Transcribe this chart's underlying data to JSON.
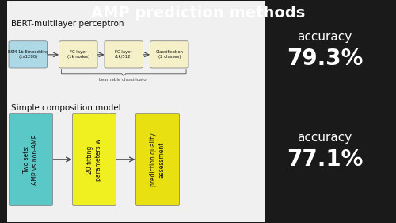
{
  "title": "AMP prediction methods",
  "title_fontsize": 14,
  "bg_color": "#1a1a1a",
  "slide_color": "#f0f0f0",
  "fg_color": "#ffffff",
  "dark_text": "#111111",
  "bert_label": "BERT-multilayer perceptron",
  "bert_label_fontsize": 7.5,
  "bert_box1_text": "ESM-1b Embedding\n(1x1280)",
  "bert_box2_text": "FC layer\n(1k nodes)",
  "bert_box3_text": "FC layer\n(1k/512)",
  "bert_box4_text": "Classification\n(2 classes)",
  "bert_box1_color": "#add8e6",
  "bert_box234_color": "#f5f0c8",
  "bert_brace_label": "Learnable classificator",
  "acc1_label": "accuracy",
  "acc1_value": "79.3%",
  "acc1_label_fontsize": 11,
  "acc1_value_fontsize": 20,
  "simple_label": "Simple composition model",
  "simple_label_fontsize": 7.5,
  "simple_box1_text": "Two sets:\nAMP vs non-AMP",
  "simple_box2_text": "20 fitting\nparameters w",
  "simple_box3_text": "prediction quality\nassessment",
  "simple_box1_color": "#5bc8c8",
  "simple_box2_color": "#f0f020",
  "simple_box3_color": "#e8e010",
  "acc2_label": "accuracy",
  "acc2_value": "77.1%",
  "acc2_label_fontsize": 11,
  "acc2_value_fontsize": 20
}
